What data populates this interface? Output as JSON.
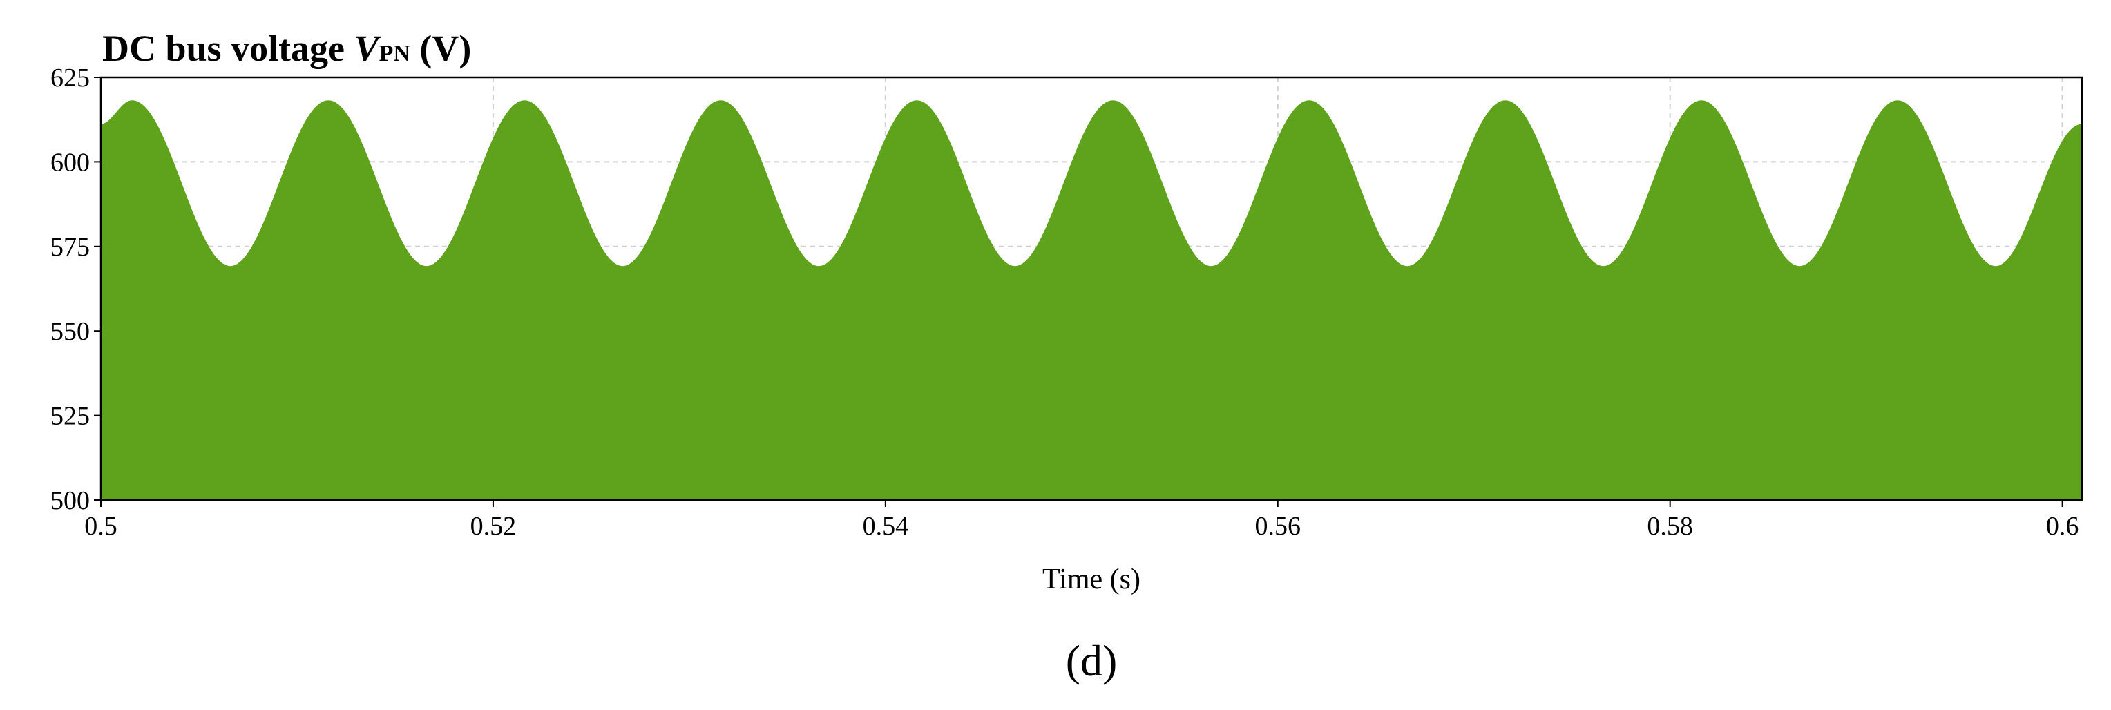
{
  "chart_data": {
    "type": "area",
    "title": {
      "prefix": "DC bus voltage ",
      "symbol": "V",
      "subscript": "PN",
      "suffix": " (V)"
    },
    "xlabel": "Time (s)",
    "ylabel": "",
    "xlim": [
      0.5,
      0.601
    ],
    "ylim": [
      500,
      625
    ],
    "xticks": [
      0.5,
      0.52,
      0.54,
      0.56,
      0.58,
      0.6
    ],
    "xtick_labels": [
      "0.5",
      "0.52",
      "0.54",
      "0.56",
      "0.58",
      "0.6"
    ],
    "yticks": [
      500,
      525,
      550,
      575,
      600,
      625
    ],
    "ytick_labels": [
      "500",
      "525",
      "550",
      "575",
      "600",
      "625"
    ],
    "grid": true,
    "legend": "none",
    "baseline": 500,
    "series": [
      {
        "color": "#5fa31c",
        "x": [
          0.5,
          0.5016,
          0.5066,
          0.5116,
          0.5166,
          0.5216,
          0.5266,
          0.5316,
          0.5366,
          0.5416,
          0.5466,
          0.5516,
          0.5566,
          0.5616,
          0.5666,
          0.5716,
          0.5766,
          0.5816,
          0.5866,
          0.5916,
          0.5966,
          0.601
        ],
        "y": [
          611,
          618,
          569,
          618,
          569,
          618,
          569,
          618,
          569,
          618,
          569,
          618,
          569,
          618,
          569,
          618,
          569,
          618,
          569,
          618,
          569,
          611
        ]
      }
    ]
  },
  "panel_label": "(d)"
}
